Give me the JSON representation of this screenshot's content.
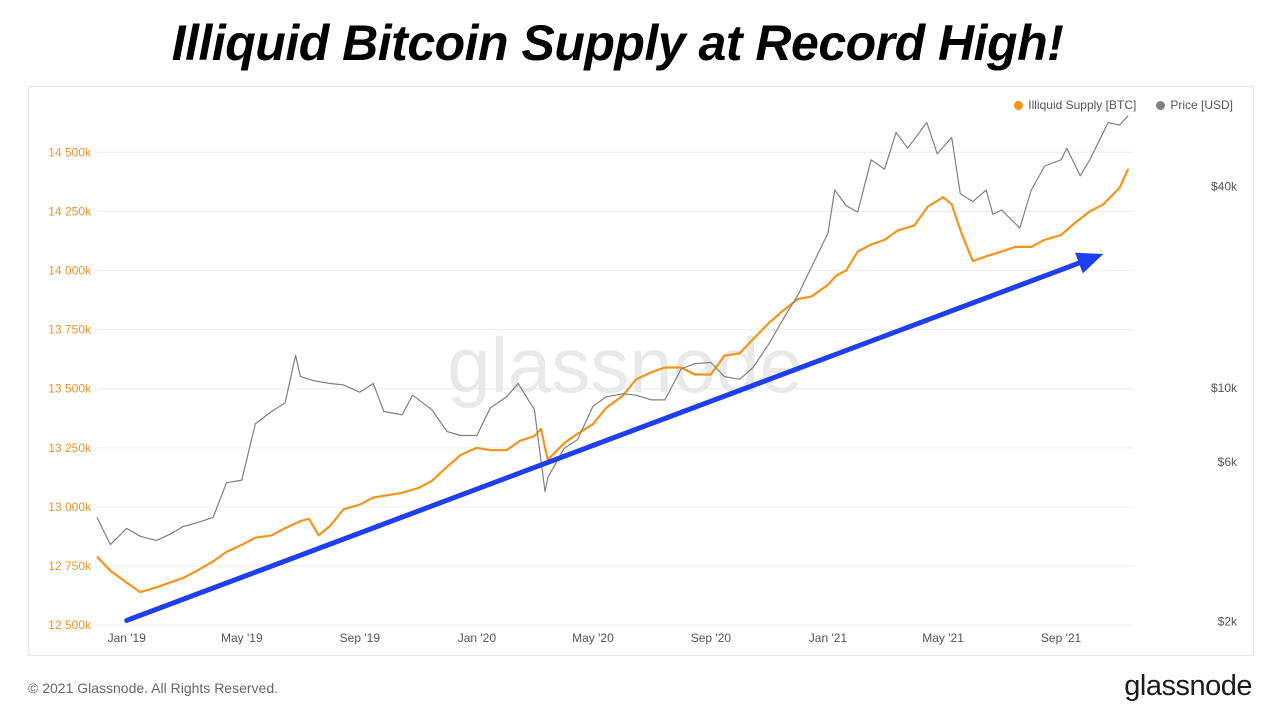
{
  "headline": "Illiquid Bitcoin Supply at Record High!",
  "watermark": "glassnode",
  "footer": {
    "copyright": "© 2021 Glassnode. All Rights Reserved.",
    "brand": "glassnode"
  },
  "legend": [
    {
      "label": "Illiquid Supply [BTC]",
      "color": "#f7931a"
    },
    {
      "label": "Price [USD]",
      "color": "#808080"
    }
  ],
  "chart_data": {
    "type": "line",
    "title": "Illiquid Bitcoin Supply at Record High!",
    "xlabel": "",
    "ylabel": "",
    "grid": true,
    "legend_position": "top-right",
    "x_ticks": [
      "Jan '19",
      "May '19",
      "Sep '19",
      "Jan '20",
      "May '20",
      "Sep '20",
      "Jan '21",
      "May '21",
      "Sep '21"
    ],
    "x_range": [
      "2018-12-01",
      "2021-11-15"
    ],
    "y_left": {
      "scale": "linear",
      "range": [
        12450,
        14700
      ],
      "ticks": [
        12500,
        12750,
        13000,
        13250,
        13500,
        13750,
        14000,
        14250,
        14500
      ],
      "tick_labels": [
        "12 500k",
        "12 750k",
        "13 000k",
        "13 250k",
        "13 500k",
        "13 750k",
        "14 000k",
        "14 250k",
        "14 500k"
      ],
      "unit": "thousand BTC"
    },
    "y_right": {
      "scale": "log",
      "range": [
        1800,
        70000
      ],
      "ticks": [
        2000,
        6000,
        10000,
        40000
      ],
      "tick_labels": [
        "$2k",
        "$6k",
        "$10k",
        "$40k"
      ]
    },
    "series": [
      {
        "name": "Illiquid Supply [BTC]",
        "axis": "left",
        "color": "#f7931a",
        "x": [
          "2018-12-01",
          "2018-12-15",
          "2019-01-01",
          "2019-01-15",
          "2019-02-01",
          "2019-02-15",
          "2019-03-01",
          "2019-03-15",
          "2019-04-01",
          "2019-04-15",
          "2019-05-01",
          "2019-05-15",
          "2019-06-01",
          "2019-06-15",
          "2019-07-01",
          "2019-07-10",
          "2019-07-20",
          "2019-08-01",
          "2019-08-15",
          "2019-09-01",
          "2019-09-15",
          "2019-10-01",
          "2019-10-15",
          "2019-11-01",
          "2019-11-15",
          "2019-12-01",
          "2019-12-15",
          "2020-01-01",
          "2020-01-15",
          "2020-02-01",
          "2020-02-15",
          "2020-03-01",
          "2020-03-08",
          "2020-03-12",
          "2020-03-15",
          "2020-04-01",
          "2020-04-15",
          "2020-05-01",
          "2020-05-15",
          "2020-06-01",
          "2020-06-15",
          "2020-07-01",
          "2020-07-15",
          "2020-08-01",
          "2020-08-15",
          "2020-09-01",
          "2020-09-15",
          "2020-10-01",
          "2020-10-15",
          "2020-11-01",
          "2020-11-15",
          "2020-12-01",
          "2020-12-15",
          "2021-01-01",
          "2021-01-10",
          "2021-01-20",
          "2021-02-01",
          "2021-02-15",
          "2021-03-01",
          "2021-03-15",
          "2021-04-01",
          "2021-04-15",
          "2021-05-01",
          "2021-05-10",
          "2021-05-20",
          "2021-06-01",
          "2021-06-15",
          "2021-07-01",
          "2021-07-15",
          "2021-08-01",
          "2021-08-15",
          "2021-09-01",
          "2021-09-15",
          "2021-10-01",
          "2021-10-15",
          "2021-11-01",
          "2021-11-10"
        ],
        "y": [
          12790,
          12730,
          12680,
          12640,
          12660,
          12680,
          12700,
          12730,
          12770,
          12810,
          12840,
          12870,
          12880,
          12910,
          12940,
          12950,
          12880,
          12920,
          12990,
          13010,
          13040,
          13050,
          13060,
          13080,
          13110,
          13170,
          13220,
          13250,
          13240,
          13240,
          13280,
          13300,
          13330,
          13250,
          13200,
          13270,
          13310,
          13350,
          13420,
          13470,
          13540,
          13570,
          13590,
          13590,
          13560,
          13560,
          13640,
          13650,
          13710,
          13780,
          13830,
          13880,
          13890,
          13940,
          13980,
          14000,
          14080,
          14110,
          14130,
          14170,
          14190,
          14270,
          14310,
          14280,
          14160,
          14040,
          14060,
          14080,
          14100,
          14100,
          14130,
          14150,
          14200,
          14250,
          14280,
          14350,
          14430
        ]
      },
      {
        "name": "Price [USD]",
        "axis": "right",
        "color": "#808080",
        "x": [
          "2018-12-01",
          "2018-12-15",
          "2019-01-01",
          "2019-01-15",
          "2019-02-01",
          "2019-02-15",
          "2019-03-01",
          "2019-03-15",
          "2019-04-01",
          "2019-04-15",
          "2019-05-01",
          "2019-05-15",
          "2019-06-01",
          "2019-06-15",
          "2019-06-26",
          "2019-07-01",
          "2019-07-15",
          "2019-08-01",
          "2019-08-15",
          "2019-09-01",
          "2019-09-15",
          "2019-09-26",
          "2019-10-15",
          "2019-10-26",
          "2019-11-15",
          "2019-12-01",
          "2019-12-15",
          "2020-01-01",
          "2020-01-15",
          "2020-02-01",
          "2020-02-13",
          "2020-03-01",
          "2020-03-12",
          "2020-03-15",
          "2020-04-01",
          "2020-04-15",
          "2020-05-01",
          "2020-05-15",
          "2020-06-01",
          "2020-06-15",
          "2020-07-01",
          "2020-07-15",
          "2020-08-01",
          "2020-08-15",
          "2020-09-01",
          "2020-09-15",
          "2020-10-01",
          "2020-10-15",
          "2020-11-01",
          "2020-11-15",
          "2020-12-01",
          "2020-12-15",
          "2021-01-01",
          "2021-01-08",
          "2021-01-20",
          "2021-02-01",
          "2021-02-15",
          "2021-03-01",
          "2021-03-13",
          "2021-03-25",
          "2021-04-14",
          "2021-04-25",
          "2021-05-10",
          "2021-05-19",
          "2021-06-01",
          "2021-06-15",
          "2021-06-22",
          "2021-07-01",
          "2021-07-20",
          "2021-08-01",
          "2021-08-15",
          "2021-09-01",
          "2021-09-07",
          "2021-09-21",
          "2021-10-01",
          "2021-10-20",
          "2021-11-01",
          "2021-11-10"
        ],
        "y": [
          4100,
          3400,
          3800,
          3600,
          3500,
          3650,
          3850,
          3950,
          4100,
          5200,
          5300,
          7800,
          8500,
          9000,
          12500,
          10800,
          10500,
          10300,
          10200,
          9700,
          10300,
          8500,
          8300,
          9500,
          8600,
          7400,
          7200,
          7200,
          8700,
          9400,
          10300,
          8600,
          4900,
          5400,
          6600,
          7000,
          8800,
          9400,
          9600,
          9500,
          9200,
          9200,
          11400,
          11800,
          11900,
          10800,
          10600,
          11500,
          13600,
          16000,
          19000,
          23000,
          29000,
          39000,
          35000,
          33500,
          48000,
          45000,
          58000,
          52000,
          62000,
          50000,
          56000,
          38000,
          36000,
          39000,
          33000,
          34000,
          30000,
          39000,
          46000,
          48000,
          52000,
          43000,
          48000,
          62000,
          61000,
          65000
        ]
      }
    ],
    "annotations": [
      {
        "type": "arrow",
        "color": "#1e3ff0",
        "from": [
          "2019-01-01",
          12520
        ],
        "to": [
          "2021-10-15",
          14070
        ]
      }
    ]
  }
}
